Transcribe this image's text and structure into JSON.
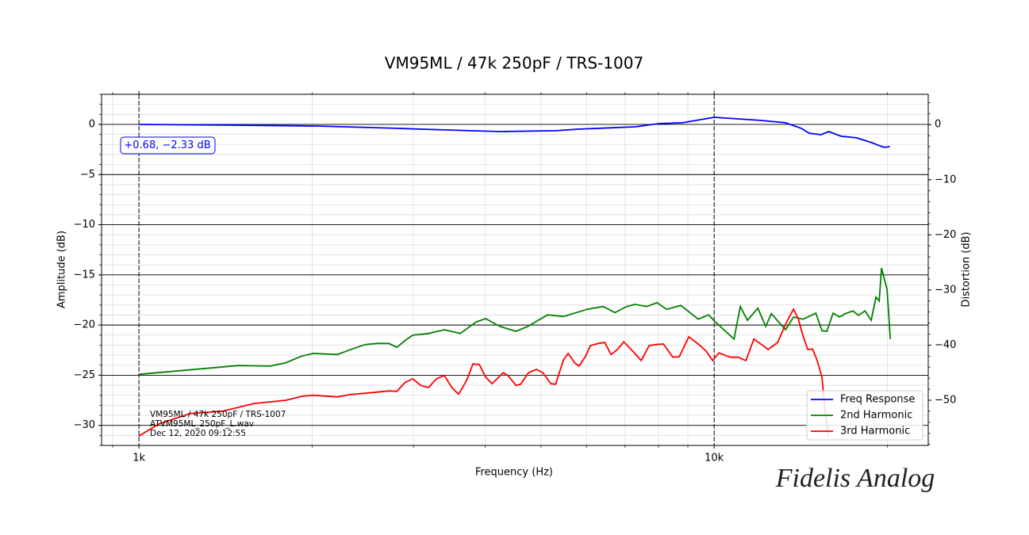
{
  "chart_data": {
    "type": "line",
    "title": "VM95ML / 47k 250pF / TRS-1007",
    "x_label": "Frequency (Hz)",
    "y_label": "Amplitude (dB)",
    "y2_label": "Distortion (dB)",
    "log_x": true,
    "grid": true,
    "legend": "lower right",
    "xlim": [
      861,
      23560
    ],
    "xticks": [
      {
        "value": 1000,
        "label": "1k"
      },
      {
        "value": 10000,
        "label": "10k"
      }
    ],
    "ylim": [
      -32,
      3
    ],
    "yticks": [
      0,
      {
        "value": -5,
        "label": "−5"
      },
      {
        "value": -10,
        "label": "−10"
      },
      {
        "value": -15,
        "label": "−15"
      },
      {
        "value": -20,
        "label": "−20"
      },
      {
        "value": -25,
        "label": "−25"
      },
      {
        "value": -30,
        "label": "−30"
      }
    ],
    "y2lim": [
      -58.2,
      5.5
    ],
    "y2ticks": [
      0,
      {
        "value": -10,
        "label": "−10"
      },
      {
        "value": -20,
        "label": "−20"
      },
      {
        "value": -30,
        "label": "−30"
      },
      {
        "value": -40,
        "label": "−40"
      },
      {
        "value": -50,
        "label": "−50"
      }
    ],
    "annotation": "+0.68, −2.33 dB",
    "info_lines": [
      "VM95ML / 47k 250pF / TRS-1007",
      "ATVM95ML_250pF_L.wav",
      "Dec 12, 2020 09:12:55"
    ],
    "signature": "Fidelis Analog",
    "series": [
      {
        "name": "Freq Response",
        "color": "#0000ff",
        "axis": "y",
        "x": [
          1000,
          1487,
          2042,
          2807,
          3396,
          4244,
          5306,
          5823,
          7287,
          8003,
          8805,
          10000,
          11000,
          12090,
          13300,
          14170,
          14620,
          15330,
          15820,
          16620,
          17680,
          18800,
          19400,
          19770,
          20200
        ],
        "values": [
          0,
          -0.08,
          -0.16,
          -0.39,
          -0.55,
          -0.71,
          -0.63,
          -0.47,
          -0.24,
          0.08,
          0.16,
          0.71,
          0.55,
          0.39,
          0.16,
          -0.39,
          -0.87,
          -1.03,
          -0.71,
          -1.18,
          -1.34,
          -1.82,
          -2.13,
          -2.29,
          -2.21
        ]
      },
      {
        "name": "2nd Harmonic",
        "color": "#008000",
        "axis": "y2",
        "x": [
          1000,
          1487,
          1689,
          1800,
          1918,
          2011,
          2212,
          2320,
          2473,
          2594,
          2720,
          2808,
          2899,
          2992,
          3187,
          3396,
          3619,
          3857,
          4006,
          4242,
          4522,
          4743,
          5133,
          5470,
          6016,
          6411,
          6723,
          7051,
          7279,
          7635,
          7955,
          8265,
          8752,
          9384,
          9779,
          10000,
          10828,
          11104,
          11426,
          11910,
          12294,
          12570,
          13310,
          13740,
          14276,
          15020,
          15400,
          15700,
          16100,
          16520,
          16890,
          17430,
          17820,
          18290,
          18750,
          19110,
          19360,
          19540,
          19980,
          20240
        ],
        "values": [
          -45.3,
          -43.7,
          -43.8,
          -43.2,
          -42.0,
          -41.5,
          -41.7,
          -40.9,
          -39.9,
          -39.7,
          -39.7,
          -40.4,
          -39.2,
          -38.2,
          -37.9,
          -37.2,
          -37.9,
          -35.8,
          -35.2,
          -36.6,
          -37.5,
          -36.6,
          -34.5,
          -34.8,
          -33.5,
          -33.0,
          -34.1,
          -33.0,
          -32.6,
          -33.0,
          -32.3,
          -33.5,
          -32.8,
          -35.3,
          -34.5,
          -35.6,
          -38.9,
          -33.0,
          -35.5,
          -33.3,
          -36.6,
          -34.3,
          -37.2,
          -34.9,
          -35.3,
          -34.2,
          -37.4,
          -37.5,
          -34.2,
          -34.9,
          -34.3,
          -33.8,
          -34.6,
          -33.8,
          -35.5,
          -31.3,
          -32.0,
          -26.0,
          -29.9,
          -38.9
        ]
      },
      {
        "name": "3rd Harmonic",
        "color": "#ff0000",
        "axis": "y2",
        "x": [
          1000,
          1083,
          1229,
          1396,
          1585,
          1800,
          1918,
          2011,
          2212,
          2320,
          2553,
          2720,
          2808,
          2899,
          2992,
          3088,
          3187,
          3290,
          3396,
          3505,
          3596,
          3713,
          3808,
          3906,
          4006,
          4110,
          4297,
          4380,
          4522,
          4608,
          4757,
          4910,
          5037,
          5200,
          5300,
          5470,
          5576,
          5720,
          5823,
          5978,
          6092,
          6290,
          6452,
          6618,
          6787,
          6963,
          7233,
          7467,
          7708,
          7906,
          8161,
          8477,
          8697,
          9035,
          9384,
          9687,
          9937,
          10193,
          10656,
          11000,
          11355,
          11722,
          12090,
          12410,
          12900,
          13310,
          13570,
          13740,
          14000,
          14276,
          14550,
          14830,
          15110,
          15400,
          15600,
          15800
        ],
        "values": [
          -56.5,
          -54.3,
          -52.4,
          -52.0,
          -50.6,
          -50.0,
          -49.3,
          -49.1,
          -49.4,
          -49.0,
          -48.6,
          -48.3,
          -48.4,
          -46.8,
          -46.1,
          -47.3,
          -47.7,
          -46.1,
          -45.5,
          -47.8,
          -48.9,
          -46.4,
          -43.4,
          -43.5,
          -45.8,
          -47.0,
          -45.0,
          -45.5,
          -47.3,
          -47.1,
          -45.0,
          -44.4,
          -45.0,
          -47.0,
          -47.1,
          -42.7,
          -41.5,
          -43.2,
          -43.8,
          -42.0,
          -40.1,
          -39.7,
          -39.5,
          -41.7,
          -40.8,
          -39.4,
          -41.2,
          -42.8,
          -40.1,
          -39.9,
          -39.8,
          -42.2,
          -42.1,
          -38.5,
          -39.8,
          -41.1,
          -42.8,
          -41.4,
          -42.2,
          -42.2,
          -42.8,
          -38.9,
          -39.9,
          -40.8,
          -39.5,
          -36.2,
          -34.5,
          -33.5,
          -35.2,
          -38.4,
          -40.8,
          -40.7,
          -42.8,
          -45.9,
          -52.2,
          -56.5
        ]
      }
    ]
  }
}
